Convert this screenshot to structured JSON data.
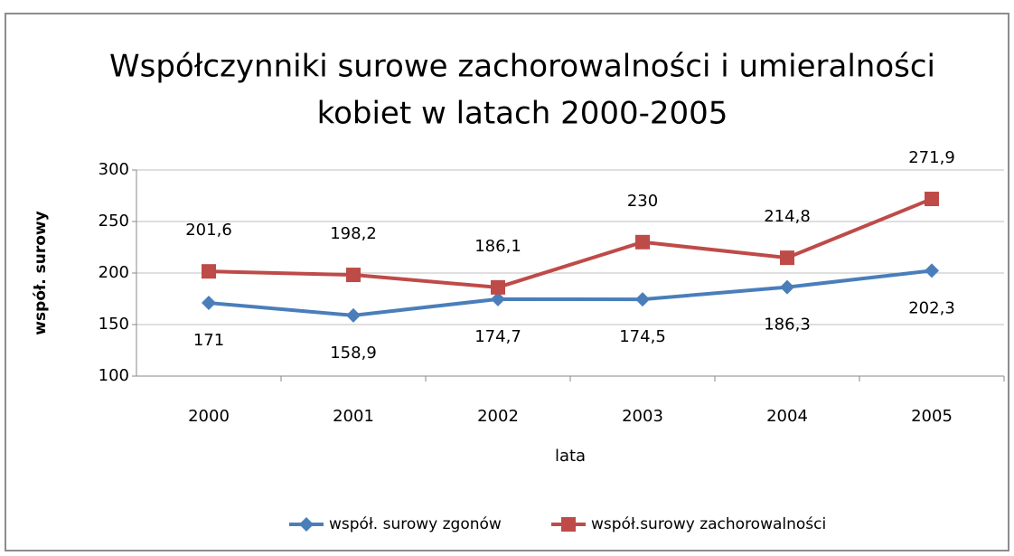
{
  "chart_data": {
    "type": "line",
    "title": [
      "Współczynniki surowe zachorowalności i umieralności",
      "kobiet  w latach 2000-2005"
    ],
    "xlabel": "lata",
    "ylabel": "współ. surowy",
    "categories": [
      "2000",
      "2001",
      "2002",
      "2003",
      "2004",
      "2005"
    ],
    "series": [
      {
        "name": "współ. surowy zgonów",
        "color": "#4a7ebb",
        "marker": "diamond",
        "label_position": "below",
        "values": [
          171,
          158.9,
          174.7,
          174.5,
          186.3,
          202.3
        ],
        "value_labels": [
          "171",
          "158,9",
          "174,7",
          "174,5",
          "186,3",
          "202,3"
        ]
      },
      {
        "name": "współ.surowy zachorowalności",
        "color": "#be4b48",
        "marker": "square",
        "label_position": "above",
        "values": [
          201.6,
          198.2,
          186.1,
          230,
          214.8,
          271.9
        ],
        "value_labels": [
          "201,6",
          "198,2",
          "186,1",
          "230",
          "214,8",
          "271,9"
        ]
      }
    ],
    "ylim": [
      100,
      300
    ],
    "yticks": [
      100,
      150,
      200,
      250,
      300
    ],
    "grid": true,
    "legend": "bottom"
  }
}
